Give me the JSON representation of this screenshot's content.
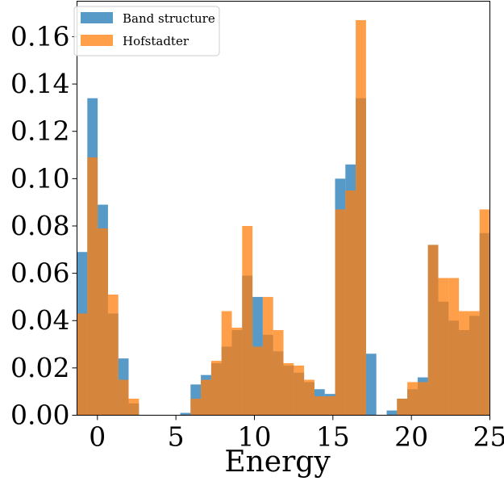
{
  "chart_data": {
    "type": "histogram",
    "title": "",
    "xlabel": "Energy",
    "ylabel": "",
    "xlim": [
      -1.3,
      25
    ],
    "ylim": [
      0,
      0.175
    ],
    "xticks": [
      0,
      5,
      10,
      15,
      20,
      25
    ],
    "yticks": [
      0.0,
      0.02,
      0.04,
      0.06,
      0.08,
      0.1,
      0.12,
      0.14,
      0.16
    ],
    "ytick_labels": [
      "0.00",
      "0.02",
      "0.04",
      "0.06",
      "0.08",
      "0.10",
      "0.12",
      "0.14",
      "0.16"
    ],
    "legend_position": "top-left",
    "grid": false,
    "bin_start": -1.3,
    "bin_width": 0.6575,
    "series": [
      {
        "name": "Band structure",
        "color": "#1f77b4",
        "values": [
          0.069,
          0.134,
          0.089,
          0.043,
          0.024,
          0.005,
          0,
          0,
          0,
          0,
          0.001,
          0.013,
          0.017,
          0.022,
          0.029,
          0.036,
          0.059,
          0.05,
          0.034,
          0.027,
          0.021,
          0.018,
          0.014,
          0.011,
          0.009,
          0.1,
          0.106,
          0.134,
          0.026,
          0,
          0.002,
          0.007,
          0.011,
          0.016,
          0.072,
          0.048,
          0.04,
          0.036,
          0.042,
          0.077
        ]
      },
      {
        "name": "Hofstadter",
        "color": "#ff7f0e",
        "values": [
          0.043,
          0.109,
          0.079,
          0.051,
          0.015,
          0.007,
          0,
          0,
          0,
          0,
          0,
          0.007,
          0.015,
          0.023,
          0.044,
          0.037,
          0.08,
          0.029,
          0.05,
          0.036,
          0.022,
          0.021,
          0.015,
          0.008,
          0.008,
          0.087,
          0.095,
          0.167,
          0,
          0,
          0,
          0.007,
          0.014,
          0.014,
          0.072,
          0.058,
          0.058,
          0.044,
          0.044,
          0.087
        ]
      }
    ]
  }
}
